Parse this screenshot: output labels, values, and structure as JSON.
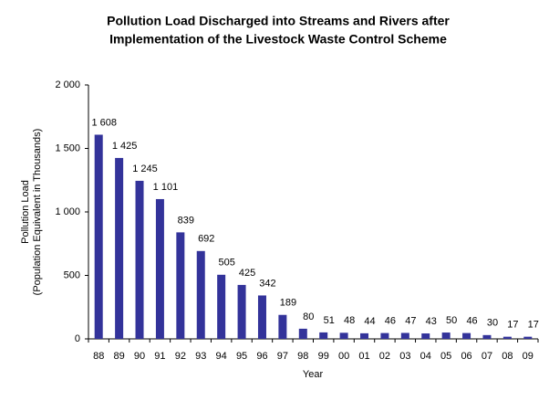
{
  "chart_data": {
    "type": "bar",
    "title": [
      "Pollution Load Discharged into Streams and Rivers after",
      "Implementation of the Livestock Waste Control Scheme"
    ],
    "y_label": [
      "Pollution Load",
      "(Population Equivalent in Thousands)"
    ],
    "x_label": "Year",
    "categories": [
      "88",
      "89",
      "90",
      "91",
      "92",
      "93",
      "94",
      "95",
      "96",
      "97",
      "98",
      "99",
      "00",
      "01",
      "02",
      "03",
      "04",
      "05",
      "06",
      "07",
      "08",
      "09"
    ],
    "values": [
      1608,
      1425,
      1245,
      1101,
      839,
      692,
      505,
      425,
      342,
      189,
      80,
      51,
      48,
      44,
      46,
      47,
      43,
      50,
      46,
      30,
      17,
      17
    ],
    "value_labels": [
      "1 608",
      "1 425",
      "1 245",
      "1 101",
      "839",
      "692",
      "505",
      "425",
      "342",
      "189",
      "80",
      "51",
      "48",
      "44",
      "46",
      "47",
      "43",
      "50",
      "46",
      "30",
      "17",
      "17"
    ],
    "color": "#33339a",
    "ylim": [
      0,
      2000
    ],
    "yticks": [
      0,
      500,
      {
        "value": 1000,
        "label": "1 000"
      },
      {
        "value": 1500,
        "label": "1 500"
      },
      {
        "value": 2000,
        "label": "2 000"
      }
    ],
    "grid": false
  }
}
